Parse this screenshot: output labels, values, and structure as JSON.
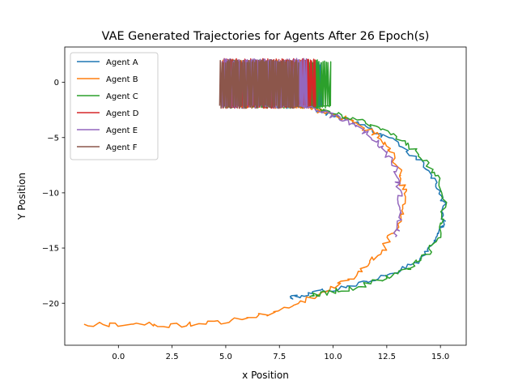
{
  "chart_data": {
    "type": "line",
    "title": "VAE Generated Trajectories for Agents After 26 Epoch(s)",
    "xlabel": "x Position",
    "ylabel": "Y Position",
    "xlim": [
      -2.5,
      16.2
    ],
    "ylim": [
      -23.8,
      3.2
    ],
    "xticks": [
      0.0,
      2.5,
      5.0,
      7.5,
      10.0,
      12.5,
      15.0
    ],
    "xtick_labels": [
      "0.0",
      "2.5",
      "5.0",
      "7.5",
      "10.0",
      "12.5",
      "15.0"
    ],
    "yticks": [
      0,
      -5,
      -10,
      -15,
      -20
    ],
    "ytick_labels": [
      "0",
      "−5",
      "−10",
      "−15",
      "−20"
    ],
    "grid": false,
    "legend_position": "top-left",
    "series": [
      {
        "name": "Agent A",
        "color": "#1f77b4",
        "noise": 0.12,
        "oscillation": {
          "x_start": 4.8,
          "x_end": 9.5,
          "y_low": -2.2,
          "y_high": 1.7
        },
        "x": [
          8.8,
          9.3,
          10.2,
          11.5,
          12.8,
          14.0,
          14.8,
          15.2,
          15.1,
          14.6,
          13.8,
          12.6,
          11.2,
          9.8,
          8.5,
          8.0
        ],
        "y": [
          -2.0,
          -2.5,
          -3.1,
          -4.0,
          -5.3,
          -7.0,
          -8.9,
          -11.0,
          -13.0,
          -14.8,
          -16.4,
          -17.4,
          -18.2,
          -18.8,
          -19.3,
          -19.5
        ]
      },
      {
        "name": "Agent B",
        "color": "#ff7f0e",
        "noise": 0.15,
        "oscillation": {
          "x_start": 4.8,
          "x_end": 8.6,
          "y_low": -2.2,
          "y_high": 1.9
        },
        "x": [
          8.5,
          9.5,
          10.8,
          11.9,
          12.7,
          13.2,
          13.3,
          13.0,
          12.2,
          11.2,
          9.8,
          8.2,
          6.5,
          4.5,
          2.5,
          0.5,
          -1.6
        ],
        "y": [
          -2.0,
          -2.6,
          -3.4,
          -4.6,
          -6.2,
          -8.2,
          -10.5,
          -13.0,
          -15.5,
          -17.3,
          -18.8,
          -20.2,
          -21.2,
          -21.8,
          -22.0,
          -21.9,
          -21.9
        ]
      },
      {
        "name": "Agent C",
        "color": "#2ca02c",
        "noise": 0.14,
        "oscillation": {
          "x_start": 4.9,
          "x_end": 9.9,
          "y_low": -2.2,
          "y_high": 1.9
        },
        "x": [
          9.0,
          10.3,
          11.7,
          13.0,
          14.1,
          14.8,
          15.2,
          15.0,
          14.4,
          13.4,
          12.2,
          10.9,
          9.5,
          8.9
        ],
        "y": [
          -2.1,
          -2.9,
          -3.8,
          -5.0,
          -6.6,
          -8.6,
          -11.0,
          -13.4,
          -15.5,
          -17.0,
          -17.9,
          -18.6,
          -19.1,
          -19.4
        ]
      },
      {
        "name": "Agent D",
        "color": "#d62728",
        "noise": 0.1,
        "oscillation": {
          "x_start": 4.8,
          "x_end": 9.2,
          "y_low": -2.2,
          "y_high": 2.0
        },
        "x": [],
        "y": []
      },
      {
        "name": "Agent E",
        "color": "#9467bd",
        "noise": 0.13,
        "oscillation": {
          "x_start": 4.8,
          "x_end": 8.8,
          "y_low": -2.2,
          "y_high": 2.0
        },
        "x": [
          8.3,
          9.2,
          10.3,
          11.4,
          12.3,
          12.9,
          13.1,
          13.1,
          12.9
        ],
        "y": [
          -2.1,
          -2.5,
          -3.2,
          -4.3,
          -5.9,
          -7.8,
          -10.0,
          -12.2,
          -14.0
        ]
      },
      {
        "name": "Agent F",
        "color": "#8c564b",
        "noise": 0.1,
        "oscillation": {
          "x_start": 4.7,
          "x_end": 8.4,
          "y_low": -2.2,
          "y_high": 1.9
        },
        "x": [],
        "y": []
      }
    ]
  }
}
